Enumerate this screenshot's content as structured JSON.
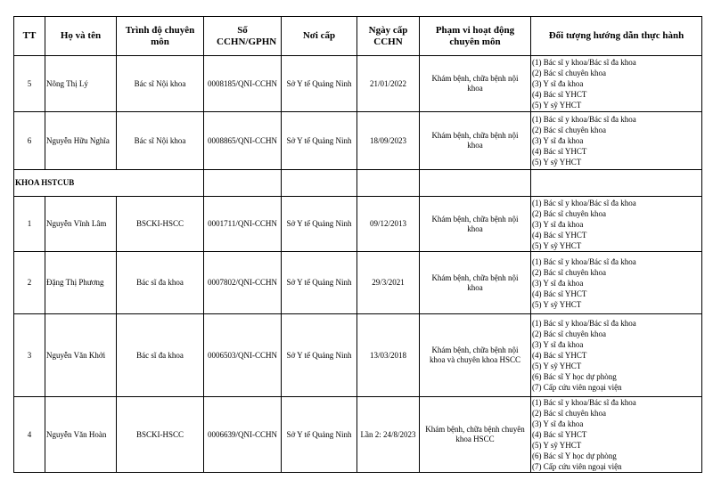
{
  "headers": [
    "TT",
    "Họ và tên",
    "Trình độ chuyên môn",
    "Số CCHN/GPHN",
    "Nơi cấp",
    "Ngày cấp CCHN",
    "Phạm vi hoạt động chuyên môn",
    "Đối tượng hướng dẫn thực hành"
  ],
  "rows_before": [
    {
      "tt": "5",
      "name": "Nông Thị Lý",
      "level": "Bác sĩ Nội khoa",
      "cert": "0008185/QNI-CCHN",
      "issuer": "Sở Y tế Quảng Ninh",
      "date": "21/01/2022",
      "scope": "Khám bệnh, chữa bệnh nội khoa",
      "targets": [
        "(1) Bác sĩ y khoa/Bác sĩ đa khoa",
        "(2) Bác sĩ chuyên khoa",
        "(3) Y sĩ đa khoa",
        "(4) Bác sĩ YHCT",
        "(5) Y sỹ YHCT"
      ]
    },
    {
      "tt": "6",
      "name": "Nguyễn Hữu Nghĩa",
      "level": "Bác sĩ Nội khoa",
      "cert": "0008865/QNI-CCHN",
      "issuer": "Sở Y tế Quảng Ninh",
      "date": "18/09/2023",
      "scope": "Khám bệnh, chữa bệnh nội khoa",
      "targets": [
        "(1) Bác sĩ y khoa/Bác sĩ đa khoa",
        "(2) Bác sĩ chuyên khoa",
        "(3) Y sĩ đa khoa",
        "(4) Bác sĩ YHCT",
        "(5) Y sỹ YHCT"
      ]
    }
  ],
  "section_title": "KHOA HSTCUB",
  "rows_after": [
    {
      "tt": "1",
      "name": "Nguyễn Vĩnh Lâm",
      "level": "BSCKI-HSCC",
      "cert": "0001711/QNI-CCHN",
      "issuer": "Sở Y tế Quảng Ninh",
      "date": "09/12/2013",
      "scope": "Khám bệnh, chữa bệnh nội khoa",
      "targets": [
        "(1) Bác sĩ y khoa/Bác sĩ đa khoa",
        "(2) Bác sĩ chuyên khoa",
        "(3) Y sĩ đa khoa",
        "(4) Bác sĩ YHCT",
        "(5) Y sỹ YHCT"
      ]
    },
    {
      "tt": "2",
      "name": "Đặng Thị Phương",
      "level": "Bác sĩ đa khoa",
      "cert": "0007802/QNI-CCHN",
      "issuer": "Sở Y tế Quảng Ninh",
      "date": "29/3/2021",
      "scope": "Khám bệnh, chữa bệnh nội khoa",
      "targets": [
        "(1) Bác sĩ y khoa/Bác sĩ đa khoa",
        "(2) Bác sĩ chuyên khoa",
        "(3) Y sĩ đa khoa",
        "(4) Bác sĩ YHCT",
        "(5) Y sỹ YHCT"
      ]
    },
    {
      "tt": "3",
      "name": "Nguyễn Văn Khởi",
      "level": "Bác sĩ đa khoa",
      "cert": "0006503/QNI-CCHN",
      "issuer": "Sở Y tế Quảng Ninh",
      "date": "13/03/2018",
      "scope": "Khám bệnh, chữa bệnh nội khoa và chuyên khoa HSCC",
      "targets": [
        "(1) Bác sĩ y khoa/Bác sĩ đa khoa",
        "(2) Bác sĩ chuyên khoa",
        "(3) Y sĩ đa khoa",
        "(4) Bác sĩ YHCT",
        "(5) Y sỹ YHCT",
        "(6) Bác sĩ Y học dự phòng",
        "(7) Cấp cứu viên ngoại viện"
      ]
    },
    {
      "tt": "4",
      "name": "Nguyễn Văn Hoàn",
      "level": "BSCKI-HSCC",
      "cert": "0006639/QNI-CCHN",
      "issuer": "Sở Y tế Quảng Ninh",
      "date": "Lần 2: 24/8/2023",
      "scope": "Khám bệnh, chữa bệnh chuyên khoa HSCC",
      "targets": [
        "(1) Bác sĩ y khoa/Bác sĩ đa khoa",
        "(2) Bác sĩ chuyên khoa",
        "(3) Y sĩ đa khoa",
        "(4) Bác sĩ YHCT",
        "(5) Y sỹ YHCT",
        "(6) Bác sĩ Y học dự phòng",
        "(7) Cấp cứu viên ngoại viện"
      ]
    }
  ]
}
